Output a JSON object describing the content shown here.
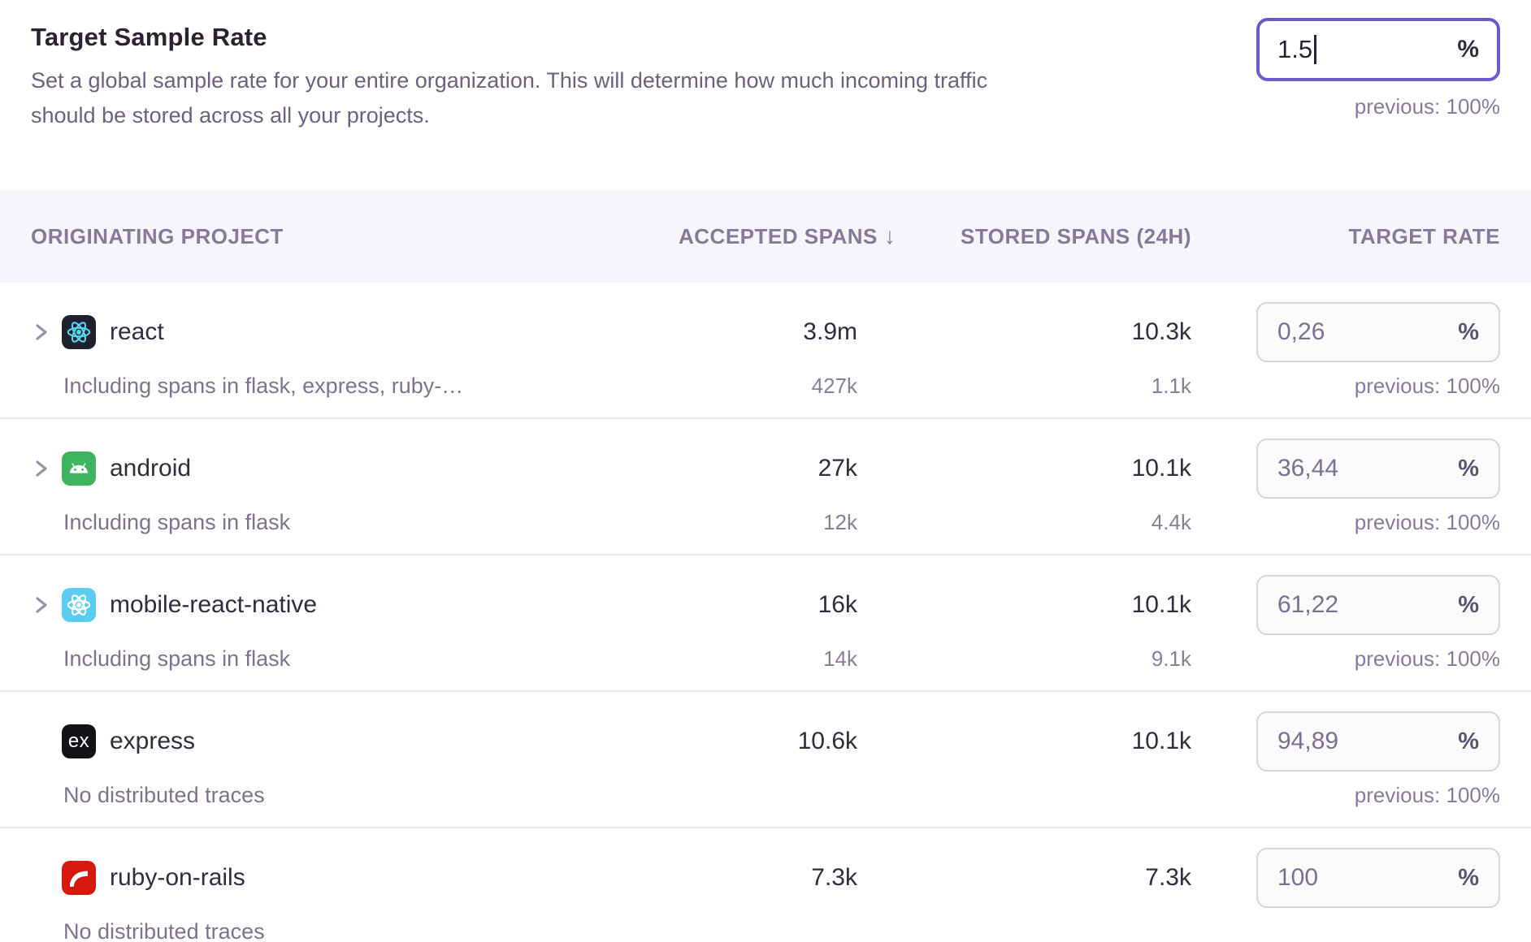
{
  "header": {
    "title": "Target Sample Rate",
    "description_line1": "Set a global sample rate for your entire organization. This will determine how much incoming traffic",
    "description_line2": "should be stored across all your projects.",
    "rate_input": {
      "value": "1.5",
      "unit": "%",
      "previous": "previous: 100%"
    }
  },
  "table": {
    "columns": [
      "ORIGINATING PROJECT",
      "ACCEPTED SPANS",
      "STORED SPANS (24H)",
      "TARGET RATE"
    ],
    "sort_indicator": "↓",
    "rows": [
      {
        "name": "react",
        "platform": "react",
        "expandable": true,
        "subtext": "Including spans in flask, express, ruby-…",
        "accepted": "3.9m",
        "accepted_sub": "427k",
        "stored": "10.3k",
        "stored_sub": "1.1k",
        "rate": "0,26",
        "unit": "%",
        "previous": "previous: 100%"
      },
      {
        "name": "android",
        "platform": "android",
        "expandable": true,
        "subtext": "Including spans in flask",
        "accepted": "27k",
        "accepted_sub": "12k",
        "stored": "10.1k",
        "stored_sub": "4.4k",
        "rate": "36,44",
        "unit": "%",
        "previous": "previous: 100%"
      },
      {
        "name": "mobile-react-native",
        "platform": "react-native",
        "expandable": true,
        "subtext": "Including spans in flask",
        "accepted": "16k",
        "accepted_sub": "14k",
        "stored": "10.1k",
        "stored_sub": "9.1k",
        "rate": "61,22",
        "unit": "%",
        "previous": "previous: 100%"
      },
      {
        "name": "express",
        "platform": "express",
        "expandable": false,
        "subtext": "No distributed traces",
        "accepted": "10.6k",
        "accepted_sub": "",
        "stored": "10.1k",
        "stored_sub": "",
        "rate": "94,89",
        "unit": "%",
        "previous": "previous: 100%"
      },
      {
        "name": "ruby-on-rails",
        "platform": "rails",
        "expandable": false,
        "subtext": "No distributed traces",
        "accepted": "7.3k",
        "accepted_sub": "",
        "stored": "7.3k",
        "stored_sub": "",
        "rate": "100",
        "unit": "%",
        "previous": ""
      }
    ]
  },
  "colors": {
    "focus_border": "#6a5acb",
    "chevron": "#9a8fac",
    "header_bg": "#f6f5fb",
    "divider": "#eae7f1",
    "platforms": {
      "react": {
        "bg": "#1f2030",
        "fg": "#53d7f0"
      },
      "android": {
        "bg": "#3cb55e",
        "fg": "#ffffff"
      },
      "react-native": {
        "bg": "#5bcdf1",
        "fg": "#ffffff"
      },
      "express": {
        "bg": "#141216",
        "fg": "#ffffff",
        "label": "ex"
      },
      "rails": {
        "bg": "#d6190f",
        "fg": "#ffffff"
      }
    }
  }
}
